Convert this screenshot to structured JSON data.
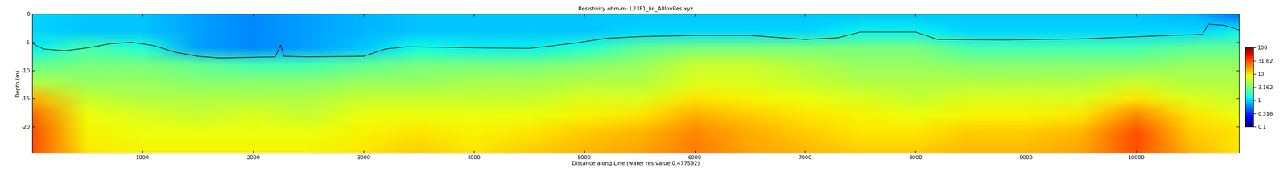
{
  "chart_data": {
    "type": "heatmap",
    "title": "Resistivity ohm-m: L23F1_lin_AllInvRes.xyz",
    "x_label": "Distance along Line (water res value 0.477592)",
    "y_label": "Depth (m)",
    "xlim": [
      0,
      10930
    ],
    "ylim": [
      -24.7,
      0
    ],
    "xticks": [
      1000,
      2000,
      3000,
      4000,
      5000,
      6000,
      7000,
      8000,
      9000,
      10000
    ],
    "yticks": [
      0,
      -5,
      -10,
      -15,
      -20
    ],
    "x": [
      0,
      500,
      1000,
      1500,
      2000,
      2500,
      3000,
      3500,
      4000,
      4500,
      5000,
      5500,
      6000,
      6500,
      7000,
      7500,
      8000,
      8500,
      9000,
      9500,
      10000,
      10500,
      10930
    ],
    "y": [
      0,
      -3,
      -6,
      -9,
      -12,
      -15,
      -18,
      -21,
      -24.7
    ],
    "cells": [
      [
        1.0,
        0.9,
        0.9,
        0.7,
        0.6,
        0.7,
        0.8,
        0.9,
        0.9,
        0.9,
        0.9,
        0.9,
        0.9,
        0.9,
        0.9,
        0.9,
        0.9,
        0.9,
        0.9,
        0.9,
        0.9,
        0.8,
        0.5
      ],
      [
        1.0,
        0.9,
        0.9,
        0.7,
        0.6,
        0.7,
        0.8,
        0.9,
        0.9,
        0.9,
        0.9,
        1.0,
        1.0,
        1.0,
        1.0,
        1.2,
        1.2,
        1.0,
        1.0,
        1.0,
        1.0,
        1.0,
        1.2
      ],
      [
        1.2,
        2.0,
        1.5,
        0.7,
        0.6,
        0.7,
        0.9,
        1.3,
        1.2,
        1.2,
        1.5,
        2.5,
        3.0,
        3.0,
        3.0,
        3.0,
        3.0,
        2.0,
        2.0,
        2.0,
        2.0,
        2.5,
        2.5
      ],
      [
        2.5,
        3,
        3,
        2.5,
        2,
        2,
        2.5,
        3,
        3,
        3,
        3.5,
        4,
        6,
        6,
        5,
        4,
        4,
        3.5,
        3.5,
        3.5,
        3.5,
        4,
        4
      ],
      [
        5,
        4,
        4,
        3.5,
        3.5,
        3.5,
        4,
        4,
        4.5,
        4.5,
        5,
        5,
        7,
        7,
        6,
        5,
        5,
        5,
        5,
        5,
        6,
        5,
        5
      ],
      [
        15,
        6,
        5,
        5,
        5,
        5,
        6,
        6,
        6,
        6,
        7,
        7,
        10,
        9,
        8,
        7,
        6,
        7,
        7,
        7,
        10,
        7,
        6
      ],
      [
        25,
        8,
        7,
        6,
        7,
        6,
        8,
        8,
        8,
        8,
        9,
        10,
        15,
        12,
        10,
        9,
        8,
        9,
        9,
        10,
        20,
        10,
        8
      ],
      [
        30,
        9,
        8,
        8,
        8,
        8,
        9,
        10,
        9,
        10,
        12,
        14,
        20,
        15,
        12,
        10,
        10,
        12,
        12,
        14,
        30,
        12,
        10
      ],
      [
        30,
        10,
        9,
        9,
        9,
        9,
        10,
        12,
        10,
        12,
        14,
        16,
        22,
        16,
        14,
        12,
        12,
        14,
        14,
        16,
        30,
        14,
        10
      ]
    ],
    "colorbar": {
      "range": [
        0.1,
        100
      ],
      "log": true,
      "ticks": [
        0.1,
        0.316,
        1,
        3.162,
        10,
        31.62,
        100
      ]
    },
    "line": {
      "color": "#000000",
      "x": [
        0,
        100,
        300,
        500,
        700,
        900,
        1100,
        1300,
        1500,
        1700,
        2200,
        2250,
        2280,
        2500,
        3000,
        3200,
        3400,
        4000,
        4500,
        4900,
        5200,
        5500,
        6000,
        6500,
        7000,
        7300,
        7500,
        8000,
        8200,
        8800,
        9500,
        10300,
        10600,
        10650,
        10800,
        10930
      ],
      "values": [
        -5.2,
        -6.2,
        -6.5,
        -6.0,
        -5.3,
        -5.0,
        -5.6,
        -6.8,
        -7.5,
        -7.8,
        -7.6,
        -5.5,
        -7.5,
        -7.6,
        -7.5,
        -6.2,
        -5.8,
        -6.0,
        -6.1,
        -5.2,
        -4.3,
        -4.0,
        -3.8,
        -3.8,
        -4.5,
        -4.2,
        -3.2,
        -3.2,
        -4.5,
        -4.6,
        -4.4,
        -3.8,
        -3.6,
        -1.8,
        -2.0,
        -2.8
      ]
    },
    "grid": false
  }
}
